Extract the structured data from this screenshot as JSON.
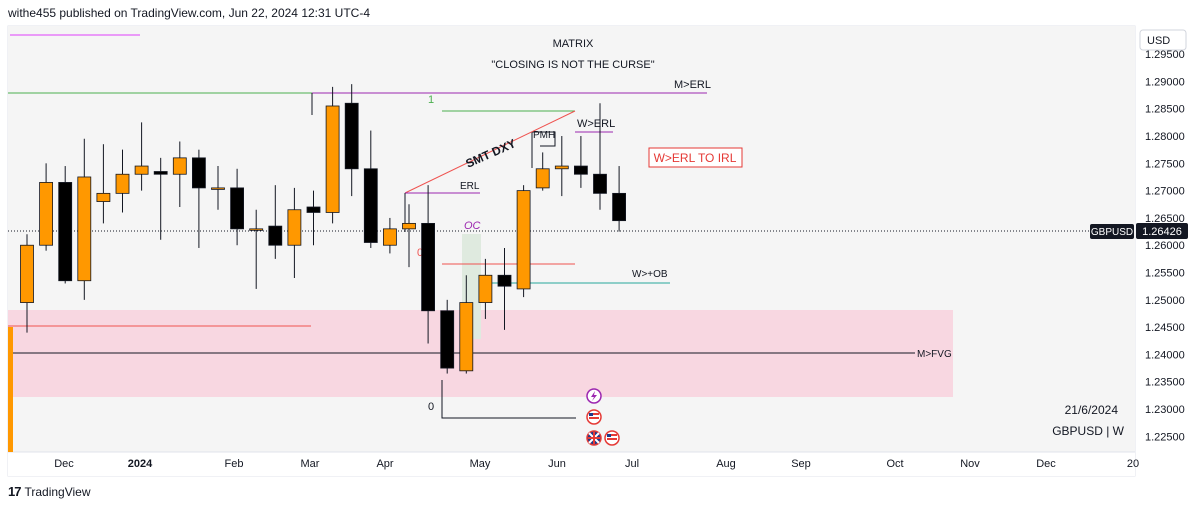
{
  "header": {
    "published": "withe455 published on TradingView.com, Jun 22, 2024 12:31 UTC-4"
  },
  "footer": {
    "brand": "TradingView"
  },
  "chart_data": {
    "type": "candlestick",
    "symbol": "GBPUSD",
    "timeframe": "W",
    "currency": "USD",
    "title": "MATRIX",
    "subtitle": "\"CLOSING IS NOT THE CURSE\"",
    "last_price": "1.26426",
    "date_label": "21/6/2024",
    "symbol_label": "GBPUSD | W",
    "ylim": [
      1.2225,
      1.2985
    ],
    "y_ticks": [
      "1.29500",
      "1.29000",
      "1.28500",
      "1.28000",
      "1.27500",
      "1.27000",
      "1.26500",
      "1.26000",
      "1.25500",
      "1.25000",
      "1.24500",
      "1.24000",
      "1.23500",
      "1.23000",
      "1.22500"
    ],
    "x_ticks": [
      "Dec",
      "2024",
      "Feb",
      "Mar",
      "Apr",
      "May",
      "Jun",
      "Jul",
      "Aug",
      "Sep",
      "Oct",
      "Nov",
      "Dec",
      "20"
    ],
    "candles": [
      {
        "o": 1.2495,
        "h": 1.262,
        "l": 1.244,
        "c": 1.26
      },
      {
        "o": 1.26,
        "h": 1.275,
        "l": 1.259,
        "c": 1.2715
      },
      {
        "o": 1.2715,
        "h": 1.2745,
        "l": 1.253,
        "c": 1.2535
      },
      {
        "o": 1.2535,
        "h": 1.2795,
        "l": 1.25,
        "c": 1.2725
      },
      {
        "o": 1.268,
        "h": 1.2785,
        "l": 1.264,
        "c": 1.2695
      },
      {
        "o": 1.2695,
        "h": 1.2775,
        "l": 1.266,
        "c": 1.273
      },
      {
        "o": 1.273,
        "h": 1.2825,
        "l": 1.27,
        "c": 1.2745
      },
      {
        "o": 1.2735,
        "h": 1.276,
        "l": 1.261,
        "c": 1.273
      },
      {
        "o": 1.273,
        "h": 1.279,
        "l": 1.267,
        "c": 1.276
      },
      {
        "o": 1.276,
        "h": 1.2775,
        "l": 1.2595,
        "c": 1.2705
      },
      {
        "o": 1.2705,
        "h": 1.2745,
        "l": 1.2665,
        "c": 1.2705
      },
      {
        "o": 1.2705,
        "h": 1.274,
        "l": 1.26,
        "c": 1.263
      },
      {
        "o": 1.263,
        "h": 1.2665,
        "l": 1.252,
        "c": 1.263
      },
      {
        "o": 1.2635,
        "h": 1.271,
        "l": 1.2575,
        "c": 1.26
      },
      {
        "o": 1.26,
        "h": 1.2705,
        "l": 1.254,
        "c": 1.2665
      },
      {
        "o": 1.267,
        "h": 1.27,
        "l": 1.26,
        "c": 1.266
      },
      {
        "o": 1.266,
        "h": 1.289,
        "l": 1.264,
        "c": 1.2855
      },
      {
        "o": 1.286,
        "h": 1.2895,
        "l": 1.269,
        "c": 1.274
      },
      {
        "o": 1.274,
        "h": 1.281,
        "l": 1.2595,
        "c": 1.2605
      },
      {
        "o": 1.26,
        "h": 1.265,
        "l": 1.2585,
        "c": 1.263
      },
      {
        "o": 1.263,
        "h": 1.2675,
        "l": 1.256,
        "c": 1.264
      },
      {
        "o": 1.264,
        "h": 1.271,
        "l": 1.242,
        "c": 1.248
      },
      {
        "o": 1.248,
        "h": 1.25,
        "l": 1.2365,
        "c": 1.2375
      },
      {
        "o": 1.237,
        "h": 1.2545,
        "l": 1.2365,
        "c": 1.2495
      },
      {
        "o": 1.2495,
        "h": 1.2575,
        "l": 1.2465,
        "c": 1.2545
      },
      {
        "o": 1.2545,
        "h": 1.2595,
        "l": 1.2445,
        "c": 1.2525
      },
      {
        "o": 1.252,
        "h": 1.271,
        "l": 1.2505,
        "c": 1.27
      },
      {
        "o": 1.2705,
        "h": 1.277,
        "l": 1.27,
        "c": 1.274
      },
      {
        "o": 1.274,
        "h": 1.28,
        "l": 1.269,
        "c": 1.2745
      },
      {
        "o": 1.2745,
        "h": 1.28,
        "l": 1.2705,
        "c": 1.273
      },
      {
        "o": 1.273,
        "h": 1.286,
        "l": 1.2665,
        "c": 1.2695
      },
      {
        "o": 1.2695,
        "h": 1.2745,
        "l": 1.2625,
        "c": 1.2645
      }
    ],
    "annotations": {
      "erl": "ERL",
      "m_erl": "M>ERL",
      "w_erl": "W>ERL",
      "pmh": "PMH",
      "smt": "SMT DXY",
      "oc": "OC",
      "fib_1": "1",
      "fib_05": "0.5",
      "fib_0": "0",
      "w_ob": "W>+OB",
      "m_fvg": "M>FVG",
      "w_erl_to_irl": "W>ERL TO IRL"
    },
    "event_icons": [
      "lightning-icon",
      "us-flag-icon",
      "uk-flag-icon",
      "us-flag-icon"
    ],
    "colors": {
      "bull": "#ff9800",
      "bear": "#000000",
      "fvg": "#f8d7e1",
      "accent": "#e53935",
      "purple": "#9c27b0",
      "green": "#4caf50",
      "blue": "#2196f3"
    }
  }
}
